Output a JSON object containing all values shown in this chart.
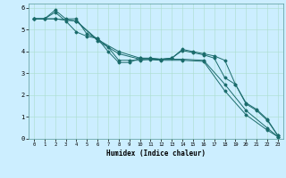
{
  "xlabel": "Humidex (Indice chaleur)",
  "ylabel": "",
  "background_color": "#cceeff",
  "line_color": "#1a6b6b",
  "xlim": [
    -0.5,
    23.5
  ],
  "ylim": [
    0,
    6.2
  ],
  "xtick_labels": [
    "0",
    "1",
    "2",
    "3",
    "4",
    "5",
    "6",
    "7",
    "8",
    "9",
    "10",
    "11",
    "12",
    "13",
    "14",
    "15",
    "16",
    "17",
    "18",
    "19",
    "20",
    "21",
    "22",
    "23"
  ],
  "ytick_labels": [
    "0",
    "1",
    "2",
    "3",
    "4",
    "5",
    "6"
  ],
  "series": [
    {
      "x": [
        0,
        1,
        2,
        3,
        4,
        5,
        6,
        7,
        8,
        9,
        10,
        11,
        12,
        13,
        14,
        15,
        16,
        17,
        18,
        19,
        20,
        21,
        22,
        23
      ],
      "y": [
        5.5,
        5.5,
        5.9,
        5.5,
        5.5,
        4.8,
        4.6,
        4.0,
        3.5,
        3.5,
        3.7,
        3.7,
        3.65,
        3.7,
        4.1,
        4.0,
        3.9,
        3.8,
        3.6,
        2.5,
        1.65,
        1.35,
        0.9,
        0.15
      ]
    },
    {
      "x": [
        0,
        1,
        2,
        3,
        4,
        5,
        6,
        7,
        8,
        9,
        10,
        11,
        12,
        13,
        14,
        15,
        16,
        17,
        18,
        19,
        20,
        21,
        22,
        23
      ],
      "y": [
        5.5,
        5.5,
        5.8,
        5.4,
        4.9,
        4.7,
        4.6,
        4.2,
        3.6,
        3.6,
        3.6,
        3.65,
        3.65,
        3.7,
        4.05,
        3.95,
        3.85,
        3.7,
        2.8,
        2.5,
        1.6,
        1.3,
        0.85,
        0.15
      ]
    },
    {
      "x": [
        0,
        1,
        2,
        4,
        6,
        8,
        10,
        12,
        14,
        16,
        18,
        20,
        22,
        23
      ],
      "y": [
        5.5,
        5.5,
        5.5,
        5.4,
        4.55,
        4.0,
        3.7,
        3.65,
        3.65,
        3.6,
        2.5,
        1.3,
        0.5,
        0.1
      ]
    },
    {
      "x": [
        0,
        2,
        4,
        6,
        8,
        10,
        12,
        14,
        16,
        18,
        20,
        22,
        23
      ],
      "y": [
        5.5,
        5.5,
        5.4,
        4.5,
        3.9,
        3.65,
        3.6,
        3.6,
        3.55,
        2.2,
        1.1,
        0.4,
        0.1
      ]
    }
  ]
}
